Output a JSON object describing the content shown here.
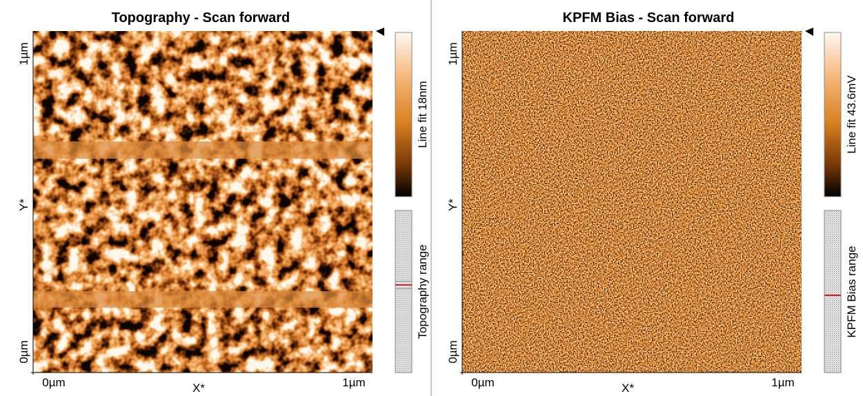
{
  "panels": [
    {
      "title": "Topography - Scan forward",
      "y_top": "1µm",
      "y_axis": "Y*",
      "y_bottom": "0µm",
      "x_left": "0µm",
      "x_axis": "X*",
      "x_right": "1µm",
      "colorbar_label": "Line fit 18nm",
      "range_label": "Topography range"
    },
    {
      "title": "KPFM Bias - Scan forward",
      "y_top": "1µm",
      "y_axis": "Y*",
      "y_bottom": "0µm",
      "x_left": "0µm",
      "x_axis": "X*",
      "x_right": "1µm",
      "colorbar_label": "Line fit 43.6mV",
      "range_label": "KPFM Bias range"
    }
  ]
}
